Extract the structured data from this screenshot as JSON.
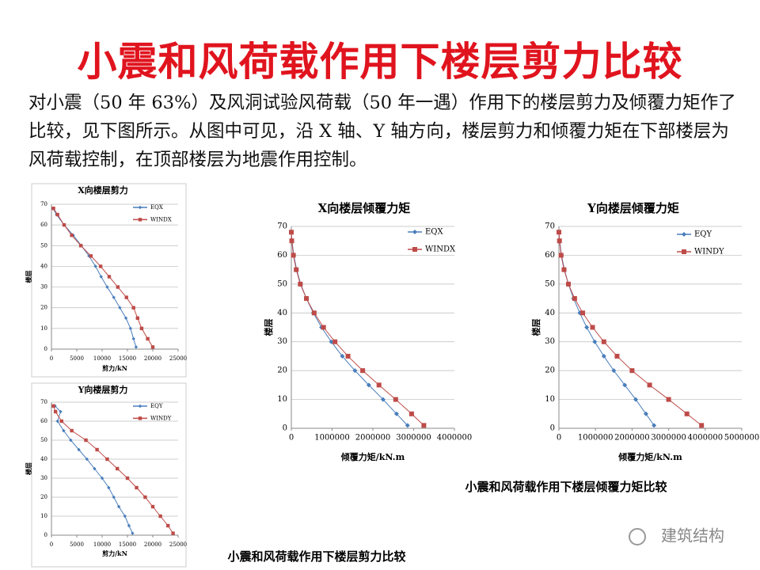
{
  "header": {
    "title": "小震和风荷载作用下楼层剪力比较"
  },
  "body": {
    "paragraph": "对小震（50 年 63%）及风洞试验风荷载（50 年一遇）作用下的楼层剪力及倾覆力矩作了比较，见下图所示。从图中可见，沿 X 轴、Y 轴方向，楼层剪力和倾覆力矩在下部楼层为风荷载控制，在顶部楼层为地震作用控制。"
  },
  "captions": [
    "小震和风荷载作用下楼层倾覆力矩比较",
    "小震和风荷载作用下楼层剪力比较"
  ],
  "watermark": "建筑结构",
  "chart_data": [
    {
      "type": "scatter",
      "title": "X向楼层剪力",
      "x_label": "剪力/kN",
      "y_label": "楼层",
      "xlim": [
        0,
        25000
      ],
      "xticks": [
        0,
        5000,
        10000,
        15000,
        20000,
        25000
      ],
      "ylim": [
        0,
        70
      ],
      "yticks": [
        0,
        10,
        20,
        30,
        40,
        50,
        60,
        70
      ],
      "grid": true,
      "y": [
        1,
        5,
        10,
        15,
        20,
        25,
        30,
        35,
        40,
        45,
        50,
        55,
        60,
        65,
        68
      ],
      "series": [
        {
          "name": "EQX",
          "color": "#4a7ebb",
          "values": [
            16700,
            16200,
            15600,
            14700,
            13500,
            12300,
            11000,
            9800,
            8700,
            7400,
            5900,
            4300,
            2500,
            1000,
            300
          ]
        },
        {
          "name": "WINDX",
          "color": "#be4b48",
          "values": [
            20000,
            19000,
            17800,
            17000,
            16200,
            14800,
            13100,
            11400,
            9700,
            7800,
            5800,
            4000,
            2500,
            1200,
            400
          ]
        }
      ]
    },
    {
      "type": "scatter",
      "title": "Y向楼层剪力",
      "x_label": "剪力/kN",
      "y_label": "楼层",
      "xlim": [
        0,
        25000
      ],
      "xticks": [
        0,
        5000,
        10000,
        15000,
        20000,
        25000
      ],
      "ylim": [
        0,
        70
      ],
      "yticks": [
        0,
        10,
        20,
        30,
        40,
        50,
        60,
        70
      ],
      "grid": true,
      "y": [
        1,
        5,
        10,
        15,
        20,
        25,
        30,
        35,
        40,
        45,
        50,
        55,
        60,
        65,
        68
      ],
      "series": [
        {
          "name": "EQY",
          "color": "#4a7ebb",
          "values": [
            16000,
            15300,
            14500,
            13300,
            12300,
            11300,
            10000,
            8500,
            7000,
            5400,
            3800,
            2400,
            1200,
            1800,
            700
          ]
        },
        {
          "name": "WINDY",
          "color": "#be4b48",
          "values": [
            24000,
            23000,
            21500,
            20000,
            18500,
            16800,
            15000,
            13000,
            11000,
            9000,
            6800,
            4000,
            2000,
            800,
            400
          ]
        }
      ]
    },
    {
      "type": "scatter",
      "title": "X向楼层倾覆力矩",
      "x_label": "倾覆力矩/kN.m",
      "y_label": "楼层",
      "xlim": [
        0,
        4000000
      ],
      "xticks": [
        0,
        1000000,
        2000000,
        3000000,
        4000000
      ],
      "ylim": [
        0,
        70
      ],
      "yticks": [
        0,
        10,
        20,
        30,
        40,
        50,
        60,
        70
      ],
      "grid": true,
      "y": [
        1,
        5,
        10,
        15,
        20,
        25,
        30,
        35,
        40,
        45,
        50,
        55,
        60,
        65,
        68
      ],
      "series": [
        {
          "name": "EQX",
          "color": "#4a7ebb",
          "values": [
            2850000,
            2580000,
            2250000,
            1900000,
            1560000,
            1250000,
            980000,
            740000,
            540000,
            370000,
            230000,
            130000,
            60000,
            15000,
            0
          ]
        },
        {
          "name": "WINDX",
          "color": "#be4b48",
          "values": [
            3250000,
            2950000,
            2560000,
            2150000,
            1750000,
            1390000,
            1070000,
            790000,
            560000,
            370000,
            220000,
            120000,
            50000,
            10000,
            0
          ]
        }
      ]
    },
    {
      "type": "scatter",
      "title": "Y向楼层倾覆力矩",
      "x_label": "倾覆力矩/kN.m",
      "y_label": "楼层",
      "xlim": [
        0,
        5000000
      ],
      "xticks": [
        0,
        1000000,
        2000000,
        3000000,
        4000000,
        5000000
      ],
      "ylim": [
        0,
        70
      ],
      "yticks": [
        0,
        10,
        20,
        30,
        40,
        50,
        60,
        70
      ],
      "grid": true,
      "y": [
        1,
        5,
        10,
        15,
        20,
        25,
        30,
        35,
        40,
        45,
        50,
        55,
        60,
        65,
        68
      ],
      "series": [
        {
          "name": "EQY",
          "color": "#4a7ebb",
          "values": [
            2600000,
            2380000,
            2100000,
            1800000,
            1500000,
            1230000,
            980000,
            760000,
            570000,
            400000,
            260000,
            150000,
            70000,
            20000,
            0
          ]
        },
        {
          "name": "WINDY",
          "color": "#be4b48",
          "values": [
            3900000,
            3500000,
            3000000,
            2480000,
            2000000,
            1590000,
            1230000,
            920000,
            650000,
            430000,
            260000,
            140000,
            60000,
            15000,
            0
          ]
        }
      ]
    }
  ]
}
